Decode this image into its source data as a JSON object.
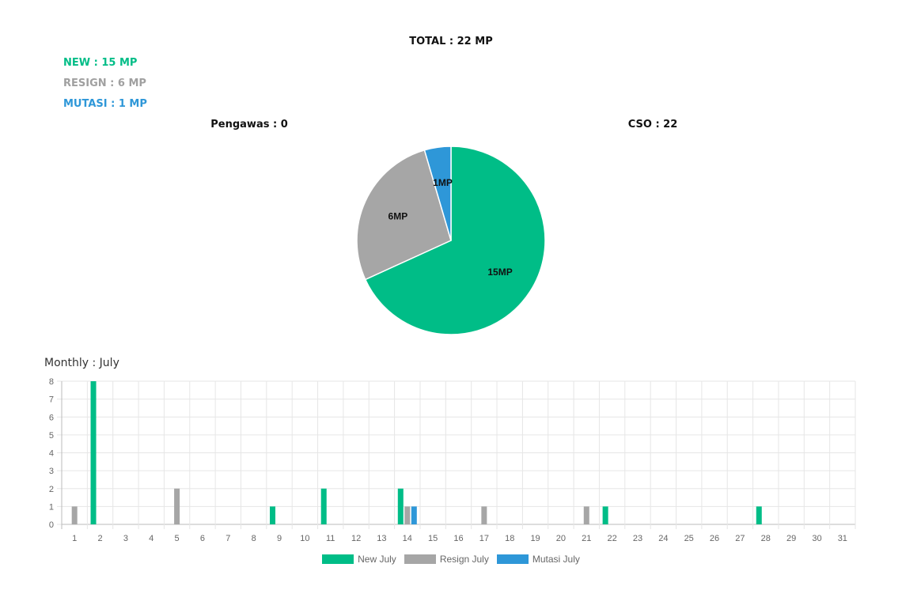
{
  "header": {
    "total": "TOTAL : 22 MP",
    "new": "NEW : 15 MP",
    "resign": "RESIGN : 6 MP",
    "mutasi": "MUTASI : 1 MP",
    "pengawas": "Pengawas : 0",
    "cso": "CSO : 22",
    "monthly": "Monthly : July"
  },
  "colors": {
    "new": "#00bd87",
    "resign": "#a6a6a6",
    "mutasi": "#2e97d8"
  },
  "chart_data": [
    {
      "type": "pie",
      "slices": [
        {
          "label": "15MP",
          "value": 15,
          "color": "#00bd87"
        },
        {
          "label": "6MP",
          "value": 6,
          "color": "#a6a6a6"
        },
        {
          "label": "1MP",
          "value": 1,
          "color": "#2e97d8"
        }
      ]
    },
    {
      "type": "bar",
      "categories": [
        "1",
        "2",
        "3",
        "4",
        "5",
        "6",
        "7",
        "8",
        "9",
        "10",
        "11",
        "12",
        "13",
        "14",
        "15",
        "16",
        "17",
        "18",
        "19",
        "20",
        "21",
        "22",
        "23",
        "24",
        "25",
        "26",
        "27",
        "28",
        "29",
        "30",
        "31"
      ],
      "ylim": [
        0,
        8
      ],
      "yticks": [
        "0",
        "1",
        "2",
        "3",
        "4",
        "5",
        "6",
        "7",
        "8"
      ],
      "grid": true,
      "legend_position": "bottom",
      "series": [
        {
          "name": "New July",
          "color": "#00bd87",
          "values": [
            0,
            8,
            0,
            0,
            0,
            0,
            0,
            0,
            1,
            0,
            2,
            0,
            0,
            2,
            0,
            0,
            0,
            0,
            0,
            0,
            0,
            1,
            0,
            0,
            0,
            0,
            0,
            1,
            0,
            0,
            0
          ]
        },
        {
          "name": "Resign July",
          "color": "#a6a6a6",
          "values": [
            1,
            0,
            0,
            0,
            2,
            0,
            0,
            0,
            0,
            0,
            0,
            0,
            0,
            1,
            0,
            0,
            1,
            0,
            0,
            0,
            1,
            0,
            0,
            0,
            0,
            0,
            0,
            0,
            0,
            0,
            0
          ]
        },
        {
          "name": "Mutasi July",
          "color": "#2e97d8",
          "values": [
            0,
            0,
            0,
            0,
            0,
            0,
            0,
            0,
            0,
            0,
            0,
            0,
            0,
            1,
            0,
            0,
            0,
            0,
            0,
            0,
            0,
            0,
            0,
            0,
            0,
            0,
            0,
            0,
            0,
            0,
            0
          ]
        }
      ]
    }
  ]
}
